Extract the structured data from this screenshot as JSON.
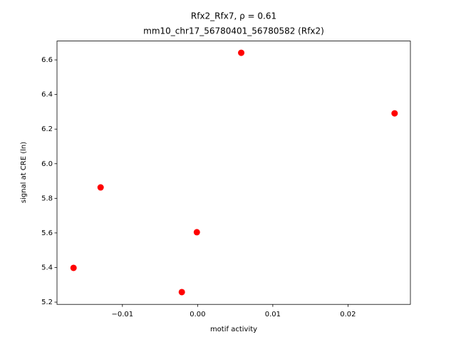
{
  "chart_data": {
    "type": "scatter",
    "title": "Rfx2_Rfx7, ρ = 0.61",
    "subtitle": "mm10_chr17_56780401_56780582 (Rfx2)",
    "x_label": "motif activity",
    "y_label": "signal at CRE (ln)",
    "color": "#ff0000",
    "x": [
      0.0058,
      0.0262,
      -0.0129,
      -0.0001,
      -0.0165,
      -0.0021
    ],
    "values": [
      6.641,
      6.291,
      5.863,
      5.604,
      5.398,
      5.258
    ],
    "xlim": [
      -0.0187,
      0.0283
    ],
    "ylim": [
      5.187,
      6.709
    ],
    "xticks": [
      {
        "value": -0.01,
        "label": "−0.01"
      },
      {
        "value": 0,
        "label": "0.00"
      },
      0.01,
      0.02
    ],
    "yticks": [
      5.2,
      5.4,
      5.6,
      5.8,
      {
        "value": 6,
        "label": "6.0"
      },
      6.2,
      6.4,
      6.6
    ]
  }
}
